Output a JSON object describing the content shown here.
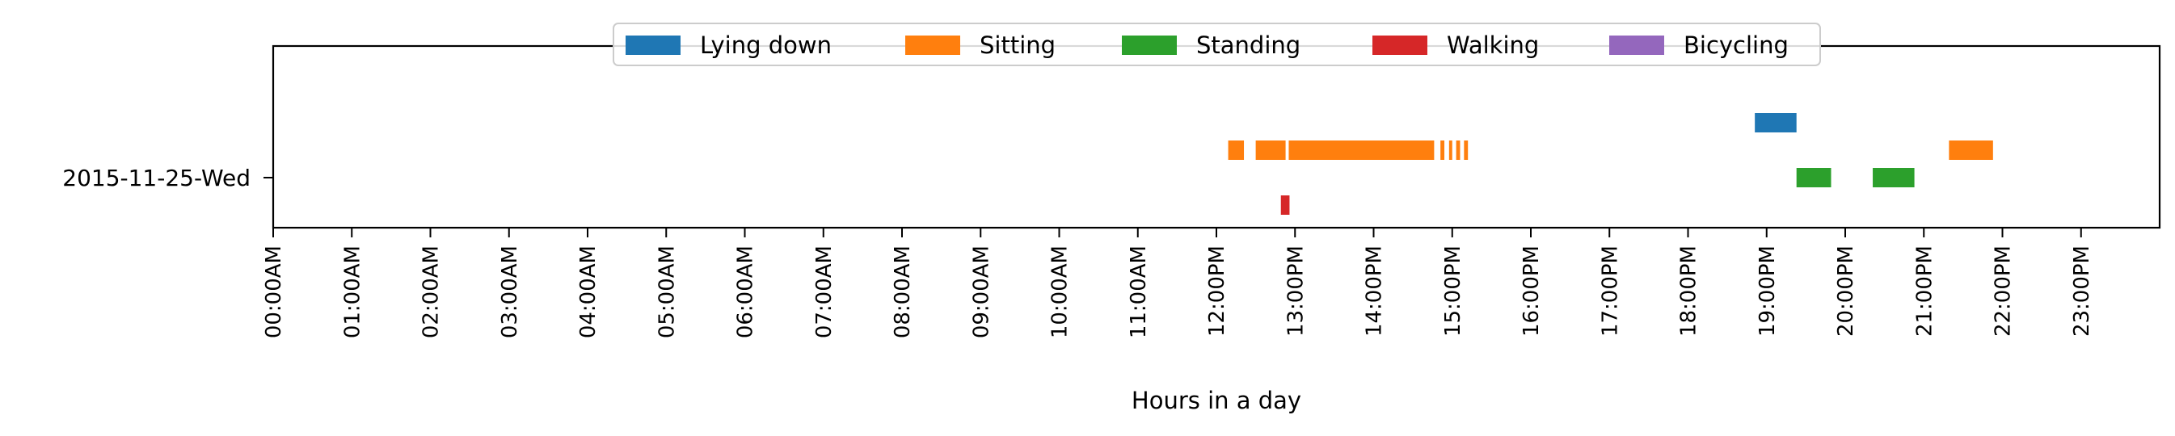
{
  "chart_data": {
    "type": "timeline",
    "title": "",
    "xlabel": "Hours in a day",
    "ylabel": "",
    "xlim_hours": [
      0,
      24
    ],
    "x_ticks": [
      "00:00AM",
      "01:00AM",
      "02:00AM",
      "03:00AM",
      "04:00AM",
      "05:00AM",
      "06:00AM",
      "07:00AM",
      "08:00AM",
      "09:00AM",
      "10:00AM",
      "11:00AM",
      "12:00PM",
      "13:00PM",
      "14:00PM",
      "15:00PM",
      "16:00PM",
      "17:00PM",
      "18:00PM",
      "19:00PM",
      "20:00PM",
      "21:00PM",
      "22:00PM",
      "23:00PM"
    ],
    "y_categories": [
      "2015-11-25-Wed"
    ],
    "legend_position": "top-center",
    "grid": false,
    "series": [
      {
        "name": "Lying down",
        "color": "#1f77b4",
        "intervals": [
          [
            18.85,
            19.38
          ]
        ]
      },
      {
        "name": "Sitting",
        "color": "#ff7f0e",
        "intervals": [
          [
            12.15,
            12.35
          ],
          [
            12.5,
            12.88
          ],
          [
            12.92,
            14.77
          ],
          [
            14.85,
            14.9
          ],
          [
            14.96,
            15.0
          ],
          [
            15.05,
            15.1
          ],
          [
            15.15,
            15.2
          ],
          [
            21.32,
            21.88
          ]
        ]
      },
      {
        "name": "Standing",
        "color": "#2ca02c",
        "intervals": [
          [
            19.38,
            19.82
          ],
          [
            20.35,
            20.88
          ]
        ]
      },
      {
        "name": "Walking",
        "color": "#d62728",
        "intervals": [
          [
            12.82,
            12.93
          ]
        ]
      },
      {
        "name": "Bicycling",
        "color": "#9467bd",
        "intervals": []
      }
    ]
  }
}
